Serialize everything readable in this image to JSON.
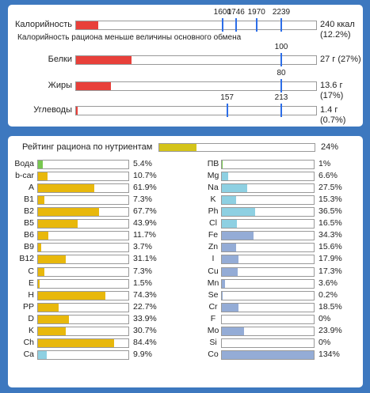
{
  "top": {
    "rows": [
      {
        "label": "Калорийность",
        "markers": [
          1600,
          1746,
          1970,
          2239
        ],
        "amount": 240,
        "amount_label": "240 ккал",
        "pct_label": "(12.2%)"
      },
      {
        "label": "Белки",
        "markers": [
          100
        ],
        "amount": 27,
        "amount_label": "27 г",
        "pct_label": "(27%)"
      },
      {
        "label": "Жиры",
        "markers": [
          80
        ],
        "amount": 13.6,
        "amount_label": "13.6 г",
        "pct_label": "(17%)"
      },
      {
        "label": "Углеводы",
        "markers": [
          157,
          213
        ],
        "amount": 1.4,
        "amount_label": "1.4 г",
        "pct_label": "(0.7%)"
      }
    ],
    "note": "Калорийность рациона меньше величины основного обмена"
  },
  "rating": {
    "title": "Рейтинг рациона по нутриентам",
    "value": 24,
    "label": "24%",
    "color": "#d4c41a"
  },
  "nutrients": {
    "left": [
      {
        "name": "Вода",
        "value": 5.4,
        "label": "5.4%",
        "color": "#78c850"
      },
      {
        "name": "b-car",
        "value": 10.7,
        "label": "10.7%",
        "color": "#e8b80c"
      },
      {
        "name": "A",
        "value": 61.9,
        "label": "61.9%",
        "color": "#e8b80c"
      },
      {
        "name": "B1",
        "value": 7.3,
        "label": "7.3%",
        "color": "#e8b80c"
      },
      {
        "name": "B2",
        "value": 67.7,
        "label": "67.7%",
        "color": "#e8b80c"
      },
      {
        "name": "B5",
        "value": 43.9,
        "label": "43.9%",
        "color": "#e8b80c"
      },
      {
        "name": "B6",
        "value": 11.7,
        "label": "11.7%",
        "color": "#e8b80c"
      },
      {
        "name": "B9",
        "value": 3.7,
        "label": "3.7%",
        "color": "#e8b80c"
      },
      {
        "name": "B12",
        "value": 31.1,
        "label": "31.1%",
        "color": "#e8b80c"
      },
      {
        "name": "C",
        "value": 7.3,
        "label": "7.3%",
        "color": "#e8b80c"
      },
      {
        "name": "E",
        "value": 1.5,
        "label": "1.5%",
        "color": "#e8b80c"
      },
      {
        "name": "H",
        "value": 74.3,
        "label": "74.3%",
        "color": "#e8b80c"
      },
      {
        "name": "PP",
        "value": 22.7,
        "label": "22.7%",
        "color": "#e8b80c"
      },
      {
        "name": "D",
        "value": 33.9,
        "label": "33.9%",
        "color": "#e8b80c"
      },
      {
        "name": "K",
        "value": 30.7,
        "label": "30.7%",
        "color": "#e8b80c"
      },
      {
        "name": "Ch",
        "value": 84.4,
        "label": "84.4%",
        "color": "#e8b80c"
      },
      {
        "name": "Ca",
        "value": 9.9,
        "label": "9.9%",
        "color": "#8ed0e2"
      }
    ],
    "right": [
      {
        "name": "ПВ",
        "value": 1,
        "label": "1%",
        "color": "#78c850"
      },
      {
        "name": "Mg",
        "value": 6.6,
        "label": "6.6%",
        "color": "#8ed0e2"
      },
      {
        "name": "Na",
        "value": 27.5,
        "label": "27.5%",
        "color": "#8ed0e2"
      },
      {
        "name": "K",
        "value": 15.3,
        "label": "15.3%",
        "color": "#8ed0e2"
      },
      {
        "name": "Ph",
        "value": 36.5,
        "label": "36.5%",
        "color": "#8ed0e2"
      },
      {
        "name": "Cl",
        "value": 16.5,
        "label": "16.5%",
        "color": "#8ed0e2"
      },
      {
        "name": "Fe",
        "value": 34.3,
        "label": "34.3%",
        "color": "#94acd6"
      },
      {
        "name": "Zn",
        "value": 15.6,
        "label": "15.6%",
        "color": "#94acd6"
      },
      {
        "name": "I",
        "value": 17.9,
        "label": "17.9%",
        "color": "#94acd6"
      },
      {
        "name": "Cu",
        "value": 17.3,
        "label": "17.3%",
        "color": "#94acd6"
      },
      {
        "name": "Mn",
        "value": 3.6,
        "label": "3.6%",
        "color": "#94acd6"
      },
      {
        "name": "Se",
        "value": 0.2,
        "label": "0.2%",
        "color": "#94acd6"
      },
      {
        "name": "Cr",
        "value": 18.5,
        "label": "18.5%",
        "color": "#94acd6"
      },
      {
        "name": "F",
        "value": 0,
        "label": "0%",
        "color": "#94acd6"
      },
      {
        "name": "Mo",
        "value": 23.9,
        "label": "23.9%",
        "color": "#94acd6"
      },
      {
        "name": "Si",
        "value": 0,
        "label": "0%",
        "color": "#94acd6"
      },
      {
        "name": "Co",
        "value": 134,
        "label": "134%",
        "color": "#94acd6"
      }
    ]
  }
}
